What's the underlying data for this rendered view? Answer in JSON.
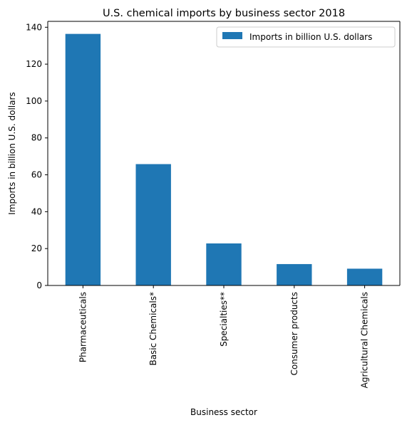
{
  "chart_data": {
    "type": "bar",
    "title": "U.S. chemical imports by business sector 2018",
    "xlabel": "Business sector",
    "ylabel": "Imports in billion U.S. dollars",
    "categories": [
      "Pharmaceuticals",
      "Basic Chemicals*",
      "Specialties**",
      "Consumer products",
      "Agricultural Chemicals"
    ],
    "series": [
      {
        "name": "Imports in billion U.S. dollars",
        "values": [
          136.4,
          65.8,
          22.8,
          11.6,
          9.1
        ],
        "color": "#1f77b4"
      }
    ],
    "ylim": [
      0,
      143.2
    ],
    "yticks": [
      0,
      20,
      40,
      60,
      80,
      100,
      120,
      140
    ],
    "grid": false,
    "legend_position": "top-right"
  }
}
